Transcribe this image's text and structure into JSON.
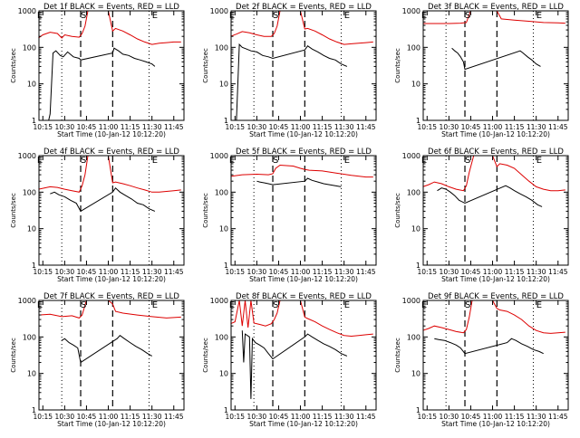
{
  "figure": {
    "xlabel": "Start Time (10-Jan-12 10:12:20)",
    "ylabel": "Counts/sec",
    "x_ticks": [
      "10:15",
      "10:30",
      "10:45",
      "11:00",
      "11:15",
      "11:30",
      "11:45"
    ],
    "y_ticks": [
      "1",
      "10",
      "100",
      "1000"
    ],
    "colors": {
      "events": "#000000",
      "lld": "#dd0000",
      "axes": "#000000"
    }
  },
  "chart_data": [
    {
      "type": "line",
      "title": "Det 1f BLACK = Events, RED = LLD",
      "xlim": [
        "10:12:20",
        "11:52:00"
      ],
      "ylim": [
        1,
        1000
      ],
      "yscale": "log",
      "markers": [
        "E",
        "S",
        "E"
      ],
      "marker_times": [
        "10:13",
        "10:43",
        "11:32"
      ],
      "dotted_lines": [
        "10:28",
        "11:28"
      ],
      "dashed_lines": [
        "10:41",
        "11:03"
      ],
      "series": [
        {
          "role": "events",
          "x": [
            "10:19",
            "10:20",
            "10:22",
            "10:24",
            "10:27",
            "10:29",
            "10:32",
            "10:36",
            "10:40",
            "10:41",
            "11:03",
            "11:04",
            "11:07",
            "11:10",
            "11:14",
            "11:18",
            "11:22",
            "11:26",
            "11:30",
            "11:32"
          ],
          "y": [
            1,
            1.5,
            70,
            80,
            60,
            55,
            75,
            55,
            50,
            45,
            70,
            95,
            80,
            65,
            60,
            50,
            45,
            40,
            35,
            30
          ]
        },
        {
          "role": "lld",
          "x": [
            "10:12",
            "10:15",
            "10:20",
            "10:25",
            "10:28",
            "10:30",
            "10:35",
            "10:40",
            "10:42",
            "10:44",
            "10:46",
            "10:50",
            "10:55",
            "11:00",
            "11:03",
            "11:05",
            "11:10",
            "11:15",
            "11:20",
            "11:25",
            "11:30",
            "11:35",
            "11:40",
            "11:45",
            "11:50"
          ],
          "y": [
            180,
            220,
            260,
            240,
            180,
            220,
            200,
            190,
            240,
            380,
            1000,
            1000,
            1000,
            1000,
            280,
            330,
            280,
            220,
            170,
            140,
            120,
            130,
            135,
            140,
            140
          ]
        }
      ]
    },
    {
      "type": "line",
      "title": "Det 2f BLACK = Events, RED = LLD",
      "xlim": [
        "10:12:20",
        "11:52:00"
      ],
      "ylim": [
        1,
        1000
      ],
      "yscale": "log",
      "markers": [
        "E",
        "S",
        "E"
      ],
      "marker_times": [
        "10:13",
        "10:43",
        "11:32"
      ],
      "dotted_lines": [
        "10:28",
        "11:28"
      ],
      "dashed_lines": [
        "10:41",
        "11:03"
      ],
      "series": [
        {
          "role": "events",
          "x": [
            "10:16",
            "10:18",
            "10:20",
            "10:23",
            "10:26",
            "10:30",
            "10:34",
            "10:38",
            "10:41",
            "11:03",
            "11:05",
            "11:08",
            "11:12",
            "11:16",
            "11:20",
            "11:24",
            "11:28",
            "11:32"
          ],
          "y": [
            1,
            120,
            100,
            90,
            80,
            75,
            60,
            55,
            50,
            85,
            110,
            90,
            75,
            60,
            50,
            45,
            35,
            30
          ]
        },
        {
          "role": "lld",
          "x": [
            "10:12",
            "10:16",
            "10:20",
            "10:25",
            "10:30",
            "10:35",
            "10:40",
            "10:42",
            "10:44",
            "10:46",
            "10:50",
            "11:00",
            "11:03",
            "11:05",
            "11:10",
            "11:15",
            "11:20",
            "11:25",
            "11:30",
            "11:35",
            "11:40",
            "11:45",
            "11:50"
          ],
          "y": [
            200,
            230,
            270,
            250,
            220,
            200,
            200,
            240,
            380,
            1000,
            1000,
            1000,
            320,
            330,
            280,
            220,
            170,
            140,
            120,
            125,
            130,
            135,
            140
          ]
        }
      ]
    },
    {
      "type": "line",
      "title": "Det 3f BLACK = Events, RED = LLD",
      "xlim": [
        "10:12:20",
        "11:52:00"
      ],
      "ylim": [
        1,
        1000
      ],
      "yscale": "log",
      "markers": [
        "E",
        "S",
        "E"
      ],
      "marker_times": [
        "10:13",
        "10:43",
        "11:32"
      ],
      "dotted_lines": [
        "10:28",
        "11:28"
      ],
      "dashed_lines": [
        "10:41",
        "11:03"
      ],
      "series": [
        {
          "role": "events",
          "x": [
            "10:32",
            "10:34",
            "10:36",
            "10:38",
            "10:40",
            "10:41",
            "11:19",
            "11:21",
            "11:24",
            "11:27",
            "11:30",
            "11:33"
          ],
          "y": [
            95,
            80,
            70,
            55,
            40,
            25,
            80,
            70,
            55,
            45,
            35,
            30
          ]
        },
        {
          "role": "lld",
          "x": [
            "10:12",
            "10:20",
            "10:30",
            "10:38",
            "10:40",
            "10:42",
            "10:45",
            "11:00",
            "11:03",
            "11:06",
            "11:15",
            "11:25",
            "11:35",
            "11:45",
            "11:50"
          ],
          "y": [
            450,
            450,
            450,
            460,
            470,
            480,
            1000,
            1000,
            1000,
            600,
            560,
            520,
            480,
            470,
            460
          ]
        }
      ]
    },
    {
      "type": "line",
      "title": "Det 4f BLACK = Events, RED = LLD",
      "xlim": [
        "10:12:20",
        "11:52:00"
      ],
      "ylim": [
        1,
        1000
      ],
      "yscale": "log",
      "markers": [
        "E",
        "S",
        "E"
      ],
      "marker_times": [
        "10:13",
        "10:43",
        "11:32"
      ],
      "dotted_lines": [
        "10:28",
        "11:28"
      ],
      "dashed_lines": [
        "10:41",
        "11:03"
      ],
      "series": [
        {
          "role": "events",
          "x": [
            "10:20",
            "10:23",
            "10:26",
            "10:30",
            "10:34",
            "10:38",
            "10:41",
            "11:03",
            "11:05",
            "11:08",
            "11:12",
            "11:16",
            "11:20",
            "11:24",
            "11:28",
            "11:32"
          ],
          "y": [
            90,
            100,
            85,
            75,
            60,
            50,
            30,
            100,
            130,
            100,
            80,
            65,
            50,
            45,
            35,
            30
          ]
        },
        {
          "role": "lld",
          "x": [
            "10:12",
            "10:16",
            "10:20",
            "10:25",
            "10:30",
            "10:35",
            "10:40",
            "10:42",
            "10:44",
            "10:46",
            "10:55",
            "11:00",
            "11:03",
            "11:05",
            "11:10",
            "11:15",
            "11:20",
            "11:25",
            "11:30",
            "11:35",
            "11:40",
            "11:45",
            "11:50"
          ],
          "y": [
            120,
            130,
            140,
            135,
            120,
            110,
            100,
            150,
            300,
            1000,
            1000,
            1000,
            180,
            190,
            170,
            150,
            130,
            115,
            100,
            100,
            105,
            110,
            115
          ]
        }
      ]
    },
    {
      "type": "line",
      "title": "Det 5f BLACK = Events, RED = LLD",
      "xlim": [
        "10:12:20",
        "11:52:00"
      ],
      "ylim": [
        1,
        1000
      ],
      "yscale": "log",
      "markers": [
        "E",
        "S",
        "E"
      ],
      "marker_times": [
        "10:13",
        "10:43",
        "11:32"
      ],
      "dotted_lines": [
        "10:28",
        "11:28"
      ],
      "dashed_lines": [
        "10:41",
        "11:03"
      ],
      "series": [
        {
          "role": "events",
          "x": [
            "10:30",
            "10:32",
            "10:35",
            "10:38",
            "10:41",
            "11:03",
            "11:05",
            "11:08",
            "11:12",
            "11:16",
            "11:20",
            "11:24",
            "11:28"
          ],
          "y": [
            200,
            190,
            180,
            170,
            160,
            200,
            240,
            210,
            190,
            170,
            160,
            150,
            140
          ]
        },
        {
          "role": "lld",
          "x": [
            "10:12",
            "10:20",
            "10:30",
            "10:38",
            "10:41",
            "10:43",
            "10:46",
            "10:55",
            "11:00",
            "11:03",
            "11:06",
            "11:15",
            "11:25",
            "11:35",
            "11:45",
            "11:50"
          ],
          "y": [
            270,
            300,
            310,
            300,
            320,
            450,
            550,
            520,
            450,
            420,
            400,
            380,
            330,
            290,
            260,
            260
          ]
        }
      ]
    },
    {
      "type": "line",
      "title": "Det 6f BLACK = Events, RED = LLD",
      "xlim": [
        "10:12:20",
        "11:52:00"
      ],
      "ylim": [
        1,
        1000
      ],
      "yscale": "log",
      "markers": [
        "E",
        "S",
        "E"
      ],
      "marker_times": [
        "10:13",
        "10:43",
        "11:32"
      ],
      "dotted_lines": [
        "10:28",
        "11:28"
      ],
      "dashed_lines": [
        "10:41",
        "11:03"
      ],
      "series": [
        {
          "role": "events",
          "x": [
            "10:22",
            "10:25",
            "10:28",
            "10:31",
            "10:34",
            "10:37",
            "10:41",
            "11:09",
            "11:12",
            "11:15",
            "11:19",
            "11:23",
            "11:27",
            "11:31",
            "11:34"
          ],
          "y": [
            110,
            130,
            120,
            100,
            80,
            60,
            50,
            150,
            130,
            110,
            90,
            75,
            60,
            45,
            40
          ]
        },
        {
          "role": "lld",
          "x": [
            "10:12",
            "10:16",
            "10:20",
            "10:25",
            "10:30",
            "10:35",
            "10:40",
            "10:42",
            "10:44",
            "10:47",
            "10:55",
            "11:00",
            "11:03",
            "11:05",
            "11:10",
            "11:15",
            "11:20",
            "11:25",
            "11:30",
            "11:35",
            "11:40",
            "11:45",
            "11:50"
          ],
          "y": [
            140,
            160,
            190,
            170,
            140,
            120,
            110,
            150,
            350,
            1000,
            1000,
            1000,
            500,
            600,
            550,
            450,
            300,
            200,
            140,
            120,
            110,
            110,
            115
          ]
        }
      ]
    },
    {
      "type": "line",
      "title": "Det 7f BLACK = Events, RED = LLD",
      "xlim": [
        "10:12:20",
        "11:52:00"
      ],
      "ylim": [
        1,
        1000
      ],
      "yscale": "log",
      "markers": [
        "E",
        "S",
        "E"
      ],
      "marker_times": [
        "10:13",
        "10:43",
        "11:32"
      ],
      "dotted_lines": [
        "10:28",
        "11:28"
      ],
      "dashed_lines": [
        "10:41",
        "11:03"
      ],
      "series": [
        {
          "role": "events",
          "x": [
            "10:28",
            "10:30",
            "10:33",
            "10:36",
            "10:39",
            "10:41",
            "11:06",
            "11:08",
            "11:11",
            "11:15",
            "11:19",
            "11:23",
            "11:27",
            "11:30"
          ],
          "y": [
            80,
            90,
            70,
            60,
            50,
            20,
            90,
            110,
            90,
            70,
            55,
            45,
            35,
            30
          ]
        },
        {
          "role": "lld",
          "x": [
            "10:12",
            "10:20",
            "10:28",
            "10:35",
            "10:40",
            "10:42",
            "10:45",
            "10:55",
            "11:00",
            "11:03",
            "11:05",
            "11:10",
            "11:20",
            "11:30",
            "11:40",
            "11:45",
            "11:50"
          ],
          "y": [
            400,
            420,
            360,
            380,
            330,
            400,
            1000,
            1000,
            1000,
            800,
            500,
            450,
            400,
            360,
            330,
            340,
            350
          ]
        }
      ]
    },
    {
      "type": "line",
      "title": "Det 8f BLACK = Events, RED = LLD",
      "xlim": [
        "10:12:20",
        "11:52:00"
      ],
      "ylim": [
        1,
        1000
      ],
      "yscale": "log",
      "markers": [
        "E",
        "S",
        "E"
      ],
      "marker_times": [
        "10:13",
        "10:43",
        "11:32"
      ],
      "dotted_lines": [
        "10:28",
        "11:28"
      ],
      "dashed_lines": [
        "10:41",
        "11:03"
      ],
      "series": [
        {
          "role": "events",
          "x": [
            "10:20",
            "10:21",
            "10:22",
            "10:25",
            "10:26",
            "10:27",
            "10:29",
            "10:32",
            "10:35",
            "10:38",
            "10:41",
            "11:03",
            "11:05",
            "11:08",
            "11:12",
            "11:16",
            "11:20",
            "11:24",
            "11:28",
            "11:32"
          ],
          "y": [
            150,
            20,
            120,
            100,
            2,
            90,
            70,
            60,
            50,
            35,
            25,
            100,
            120,
            100,
            80,
            65,
            55,
            45,
            35,
            30
          ]
        },
        {
          "role": "lld",
          "x": [
            "10:12",
            "10:15",
            "10:18",
            "10:20",
            "10:22",
            "10:24",
            "10:26",
            "10:28",
            "10:32",
            "10:36",
            "10:40",
            "10:42",
            "10:44",
            "10:46",
            "10:55",
            "11:00",
            "11:03",
            "11:05",
            "11:10",
            "11:15",
            "11:20",
            "11:25",
            "11:30",
            "11:35",
            "11:40",
            "11:45",
            "11:50"
          ],
          "y": [
            230,
            260,
            1000,
            200,
            1000,
            180,
            1000,
            240,
            220,
            200,
            230,
            300,
            450,
            1000,
            1000,
            1000,
            350,
            320,
            260,
            200,
            160,
            130,
            110,
            105,
            110,
            115,
            120
          ]
        }
      ]
    },
    {
      "type": "line",
      "title": "Det 9f BLACK = Events, RED = LLD",
      "xlim": [
        "10:12:20",
        "11:52:00"
      ],
      "ylim": [
        1,
        1000
      ],
      "yscale": "log",
      "markers": [
        "E",
        "S",
        "E"
      ],
      "marker_times": [
        "10:13",
        "10:43",
        "11:32"
      ],
      "dotted_lines": [
        "10:28",
        "11:28"
      ],
      "dashed_lines": [
        "10:41",
        "11:03"
      ],
      "series": [
        {
          "role": "events",
          "x": [
            "10:20",
            "10:23",
            "10:27",
            "10:31",
            "10:35",
            "10:38",
            "10:41",
            "11:10",
            "11:13",
            "11:16",
            "11:20",
            "11:24",
            "11:28",
            "11:32",
            "11:35"
          ],
          "y": [
            90,
            85,
            80,
            70,
            60,
            50,
            35,
            70,
            90,
            80,
            65,
            55,
            45,
            40,
            35
          ]
        },
        {
          "role": "lld",
          "x": [
            "10:12",
            "10:16",
            "10:20",
            "10:25",
            "10:30",
            "10:35",
            "10:40",
            "10:42",
            "10:44",
            "10:46",
            "10:55",
            "11:00",
            "11:03",
            "11:05",
            "11:10",
            "11:15",
            "11:20",
            "11:25",
            "11:30",
            "11:35",
            "11:40",
            "11:45",
            "11:50"
          ],
          "y": [
            150,
            170,
            200,
            180,
            160,
            140,
            130,
            160,
            350,
            1000,
            1000,
            1000,
            600,
            550,
            500,
            400,
            300,
            200,
            150,
            130,
            125,
            130,
            135
          ]
        }
      ]
    }
  ]
}
